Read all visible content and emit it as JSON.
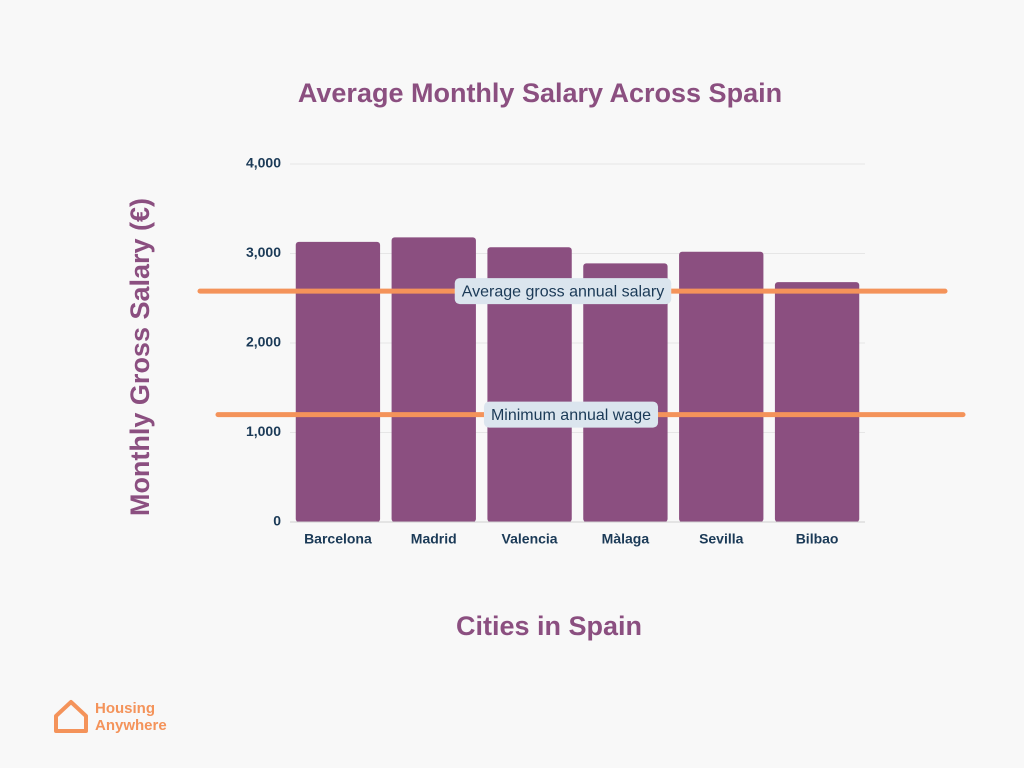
{
  "chart_data": {
    "type": "bar",
    "title": "Average Monthly Salary Across Spain",
    "x_label": "Cities in Spain",
    "y_label": "Monthly Gross Salary (€)",
    "categories": [
      "Barcelona",
      "Madrid",
      "Valencia",
      "Màlaga",
      "Sevilla",
      "Bilbao"
    ],
    "values": [
      3130,
      3180,
      3070,
      2890,
      3020,
      2680
    ],
    "color": "#8b4f80",
    "ylim": [
      0,
      4000
    ],
    "yticks": [
      0,
      {
        "value": 1000,
        "label": "1,000"
      },
      {
        "value": 2000,
        "label": "2,000"
      },
      {
        "value": 3000,
        "label": "3,000"
      },
      {
        "value": 4000,
        "label": "4,000"
      }
    ],
    "grid": true,
    "reference_lines": [
      {
        "name": "Average gross annual salary",
        "value": 2580,
        "color": "#f4935a"
      },
      {
        "name": "Minimum annual wage",
        "value": 1200,
        "color": "#f4935a"
      }
    ]
  },
  "logo": {
    "line1": "Housing",
    "line2": "Anywhere"
  }
}
